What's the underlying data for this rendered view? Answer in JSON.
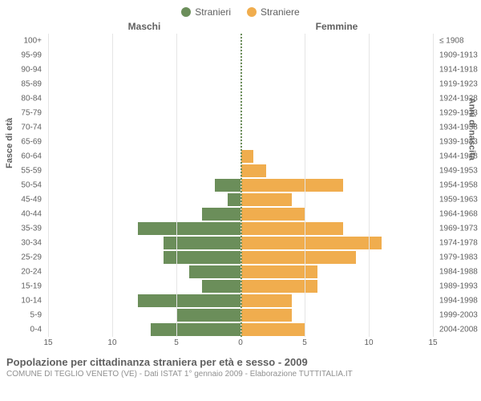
{
  "legend": {
    "m": "Stranieri",
    "f": "Straniere"
  },
  "headers": {
    "m": "Maschi",
    "f": "Femmine"
  },
  "axis": {
    "left_title": "Fasce di età",
    "right_title": "Anni di nascita",
    "max": 15,
    "ticks_left": [
      15,
      10,
      5,
      0
    ],
    "ticks_right": [
      0,
      5,
      10,
      15
    ]
  },
  "colors": {
    "m": "#6b8e5a",
    "f": "#f0ad4e",
    "grid": "#e5e5e5",
    "center": "#6b8e5a"
  },
  "rows": [
    {
      "age": "100+",
      "year": "≤ 1908",
      "m": 0,
      "f": 0
    },
    {
      "age": "95-99",
      "year": "1909-1913",
      "m": 0,
      "f": 0
    },
    {
      "age": "90-94",
      "year": "1914-1918",
      "m": 0,
      "f": 0
    },
    {
      "age": "85-89",
      "year": "1919-1923",
      "m": 0,
      "f": 0
    },
    {
      "age": "80-84",
      "year": "1924-1928",
      "m": 0,
      "f": 0
    },
    {
      "age": "75-79",
      "year": "1929-1933",
      "m": 0,
      "f": 0
    },
    {
      "age": "70-74",
      "year": "1934-1938",
      "m": 0,
      "f": 0
    },
    {
      "age": "65-69",
      "year": "1939-1943",
      "m": 0,
      "f": 0
    },
    {
      "age": "60-64",
      "year": "1944-1948",
      "m": 0,
      "f": 1
    },
    {
      "age": "55-59",
      "year": "1949-1953",
      "m": 0,
      "f": 2
    },
    {
      "age": "50-54",
      "year": "1954-1958",
      "m": 2,
      "f": 8
    },
    {
      "age": "45-49",
      "year": "1959-1963",
      "m": 1,
      "f": 4
    },
    {
      "age": "40-44",
      "year": "1964-1968",
      "m": 3,
      "f": 5
    },
    {
      "age": "35-39",
      "year": "1969-1973",
      "m": 8,
      "f": 8
    },
    {
      "age": "30-34",
      "year": "1974-1978",
      "m": 6,
      "f": 11
    },
    {
      "age": "25-29",
      "year": "1979-1983",
      "m": 6,
      "f": 9
    },
    {
      "age": "20-24",
      "year": "1984-1988",
      "m": 4,
      "f": 6
    },
    {
      "age": "15-19",
      "year": "1989-1993",
      "m": 3,
      "f": 6
    },
    {
      "age": "10-14",
      "year": "1994-1998",
      "m": 8,
      "f": 4
    },
    {
      "age": "5-9",
      "year": "1999-2003",
      "m": 5,
      "f": 4
    },
    {
      "age": "0-4",
      "year": "2004-2008",
      "m": 7,
      "f": 5
    }
  ],
  "footer": {
    "title": "Popolazione per cittadinanza straniera per età e sesso - 2009",
    "sub": "COMUNE DI TEGLIO VENETO (VE) - Dati ISTAT 1° gennaio 2009 - Elaborazione TUTTITALIA.IT"
  }
}
